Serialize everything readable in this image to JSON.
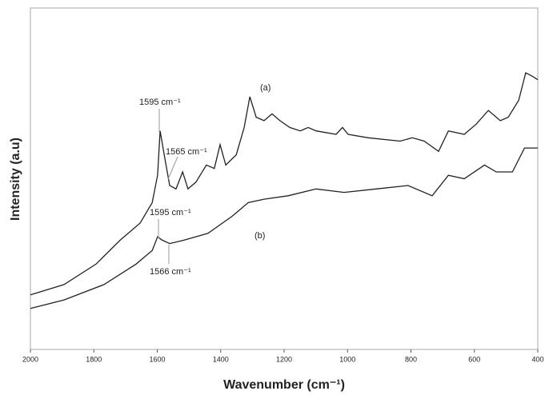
{
  "chart_data": {
    "type": "line",
    "xlabel": "Wavenumber (cm⁻¹)",
    "ylabel": "Intensity (a.u)",
    "xlim": [
      2000,
      400
    ],
    "ylim": [
      0,
      100
    ],
    "xticks": [
      2000,
      1800,
      1600,
      1400,
      1200,
      1000,
      800,
      600,
      400
    ],
    "series": [
      {
        "color": "#222222",
        "x": [
          2000,
          1894,
          1793,
          1717,
          1654,
          1616,
          1599,
          1591,
          1578,
          1561,
          1541,
          1520,
          1503,
          1478,
          1445,
          1420,
          1402,
          1384,
          1351,
          1326,
          1308,
          1288,
          1263,
          1238,
          1213,
          1182,
          1149,
          1124,
          1099,
          1036,
          1016,
          998,
          935,
          834,
          796,
          758,
          713,
          682,
          632,
          594,
          556,
          518,
          493,
          460,
          438,
          417,
          400
        ],
        "values": [
          16,
          19,
          25,
          32,
          37,
          43,
          51,
          64,
          57,
          48,
          47,
          52,
          47,
          49,
          54,
          53,
          60,
          54,
          57,
          65,
          74,
          68,
          67,
          69,
          67,
          65,
          64,
          65,
          64,
          63,
          65,
          63,
          62,
          61,
          62,
          61,
          58,
          64,
          63,
          66,
          70,
          67,
          68,
          73,
          81,
          80,
          79
        ]
      },
      {
        "color": "#222222",
        "x": [
          2000,
          1894,
          1768,
          1667,
          1616,
          1599,
          1584,
          1561,
          1516,
          1440,
          1364,
          1313,
          1263,
          1187,
          1099,
          1011,
          910,
          809,
          733,
          682,
          632,
          568,
          531,
          480,
          442,
          400
        ],
        "values": [
          12,
          14.5,
          19,
          25,
          29,
          33,
          32,
          31,
          32,
          34,
          39,
          43,
          44,
          45,
          47,
          46,
          47,
          48,
          45,
          51,
          50,
          54,
          52,
          52,
          59,
          59
        ]
      }
    ],
    "annotations": [
      "1595 cm⁻¹",
      "1565 cm⁻¹",
      "1595 cm⁻¹",
      "1566 cm⁻¹",
      "(a)",
      "(b)"
    ]
  }
}
